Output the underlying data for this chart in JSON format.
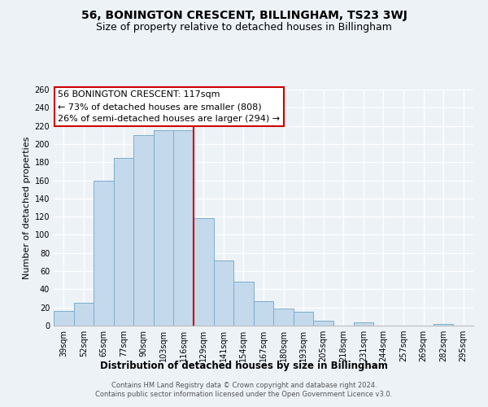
{
  "title": "56, BONINGTON CRESCENT, BILLINGHAM, TS23 3WJ",
  "subtitle": "Size of property relative to detached houses in Billingham",
  "xlabel": "Distribution of detached houses by size in Billingham",
  "ylabel": "Number of detached properties",
  "categories": [
    "39sqm",
    "52sqm",
    "65sqm",
    "77sqm",
    "90sqm",
    "103sqm",
    "116sqm",
    "129sqm",
    "141sqm",
    "154sqm",
    "167sqm",
    "180sqm",
    "193sqm",
    "205sqm",
    "218sqm",
    "231sqm",
    "244sqm",
    "257sqm",
    "269sqm",
    "282sqm",
    "295sqm"
  ],
  "values": [
    16,
    25,
    160,
    185,
    210,
    215,
    215,
    118,
    72,
    48,
    27,
    19,
    15,
    5,
    0,
    4,
    0,
    0,
    0,
    2,
    0
  ],
  "bar_color": "#c5d9ec",
  "bar_edge_color": "#7aaecc",
  "vline_color": "#cc0000",
  "vline_pos": 6.5,
  "annotation_text_line1": "56 BONINGTON CRESCENT: 117sqm",
  "annotation_text_line2": "← 73% of detached houses are smaller (808)",
  "annotation_text_line3": "26% of semi-detached houses are larger (294) →",
  "annotation_box_facecolor": "#ffffff",
  "annotation_box_edgecolor": "#cc0000",
  "ylim": [
    0,
    260
  ],
  "yticks": [
    0,
    20,
    40,
    60,
    80,
    100,
    120,
    140,
    160,
    180,
    200,
    220,
    240,
    260
  ],
  "background_color": "#edf2f7",
  "grid_color": "#ffffff",
  "title_fontsize": 10,
  "subtitle_fontsize": 9,
  "xlabel_fontsize": 8.5,
  "ylabel_fontsize": 8,
  "tick_fontsize": 7,
  "annotation_fontsize": 8,
  "footer_line1": "Contains HM Land Registry data © Crown copyright and database right 2024.",
  "footer_line2": "Contains public sector information licensed under the Open Government Licence v3.0."
}
